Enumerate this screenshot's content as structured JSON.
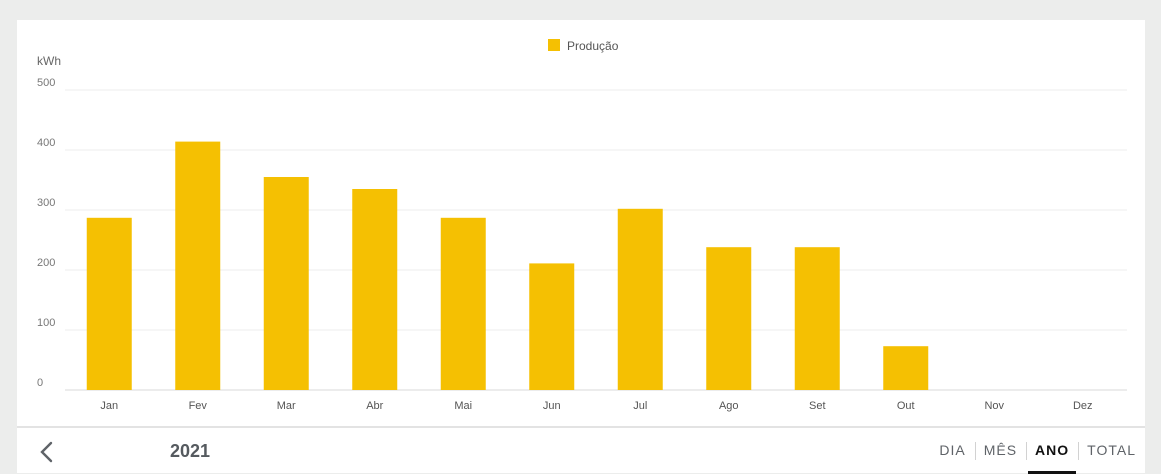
{
  "chart_data": {
    "type": "bar",
    "ylabel": "kWh",
    "ylim": [
      0,
      500
    ],
    "yticks": [
      0,
      100,
      200,
      300,
      400,
      500
    ],
    "categories": [
      "Jan",
      "Fev",
      "Mar",
      "Abr",
      "Mai",
      "Jun",
      "Jul",
      "Ago",
      "Set",
      "Out",
      "Nov",
      "Dez"
    ],
    "series": [
      {
        "name": "Produção",
        "color": "#f5c002",
        "values": [
          287,
          414,
          355,
          335,
          287,
          211,
          302,
          238,
          238,
          73,
          0,
          0
        ]
      }
    ],
    "legend_position": "top-center",
    "grid": true
  },
  "footer": {
    "prev_icon": "chevron-left-icon",
    "year": "2021",
    "tabs": [
      {
        "label": "DIA",
        "active": false
      },
      {
        "label": "MÊS",
        "active": false
      },
      {
        "label": "ANO",
        "active": true
      },
      {
        "label": "TOTAL",
        "active": false
      }
    ]
  }
}
